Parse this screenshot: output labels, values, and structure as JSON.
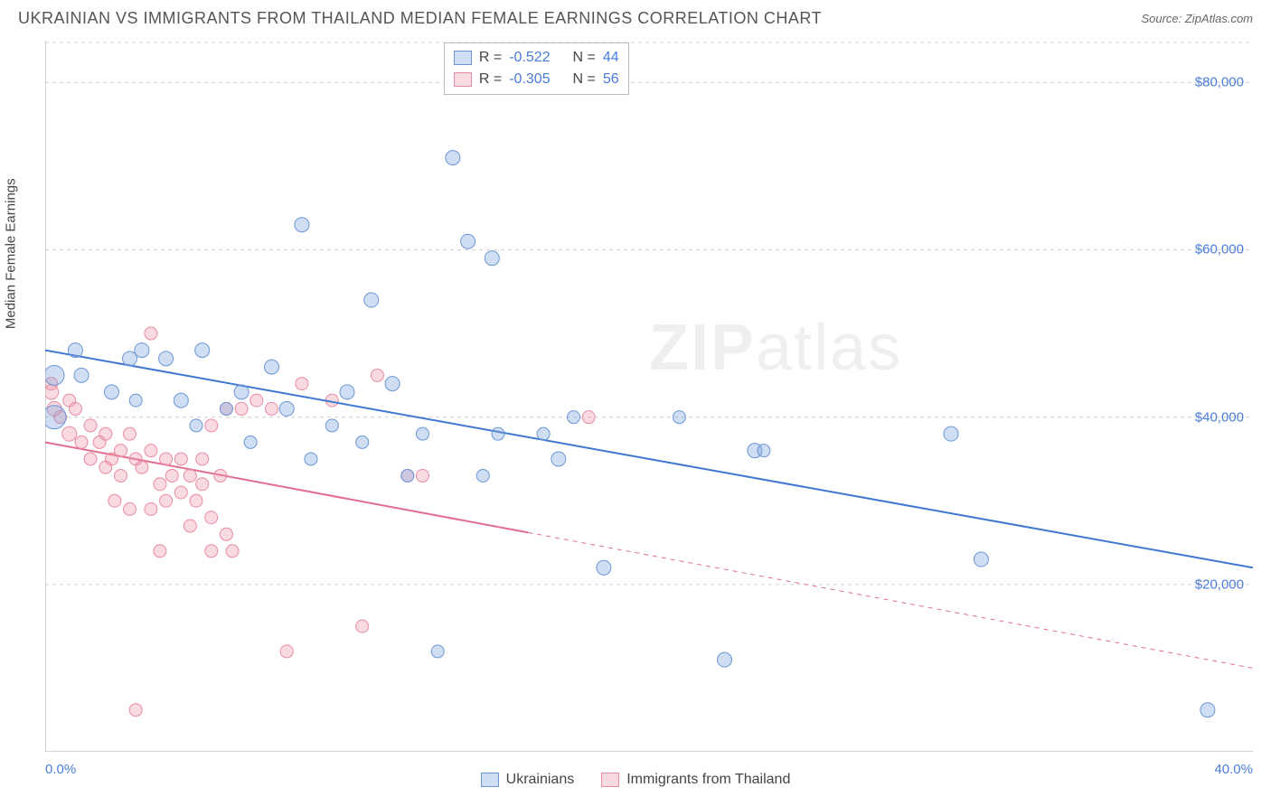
{
  "title": "UKRAINIAN VS IMMIGRANTS FROM THAILAND MEDIAN FEMALE EARNINGS CORRELATION CHART",
  "source_label": "Source: ZipAtlas.com",
  "watermark": {
    "prefix": "ZIP",
    "suffix": "atlas"
  },
  "chart": {
    "type": "scatter",
    "ylabel": "Median Female Earnings",
    "xlim": [
      0,
      40
    ],
    "ylim": [
      0,
      85000
    ],
    "y_ticks": [
      20000,
      40000,
      60000,
      80000
    ],
    "y_tick_labels": [
      "$20,000",
      "$40,000",
      "$60,000",
      "$80,000"
    ],
    "x_end_labels": [
      "0.0%",
      "40.0%"
    ],
    "x_tick_marks": [
      0,
      5,
      10,
      15,
      20,
      25,
      30,
      35
    ],
    "grid_color": "#d0d0d0",
    "axis_color": "#aaaaaa",
    "background_color": "#ffffff",
    "tick_label_color": "#4a7dd8",
    "series": [
      {
        "name": "Ukrainians",
        "fill": "rgba(120,160,220,0.35)",
        "stroke": "#6b96d6",
        "r_value": "-0.522",
        "n_value": "44",
        "trend": {
          "x1": 0,
          "y1": 48000,
          "x2": 40,
          "y2": 22000,
          "solid_to_x": 40,
          "color": "#3f77d1",
          "width": 2
        },
        "points": [
          {
            "x": 0.3,
            "y": 45000,
            "r": 11
          },
          {
            "x": 0.3,
            "y": 40000,
            "r": 13
          },
          {
            "x": 1.0,
            "y": 48000,
            "r": 8
          },
          {
            "x": 1.2,
            "y": 45000,
            "r": 8
          },
          {
            "x": 2.2,
            "y": 43000,
            "r": 8
          },
          {
            "x": 2.8,
            "y": 47000,
            "r": 8
          },
          {
            "x": 3.2,
            "y": 48000,
            "r": 8
          },
          {
            "x": 3.0,
            "y": 42000,
            "r": 7
          },
          {
            "x": 4.0,
            "y": 47000,
            "r": 8
          },
          {
            "x": 4.5,
            "y": 42000,
            "r": 8
          },
          {
            "x": 5.2,
            "y": 48000,
            "r": 8
          },
          {
            "x": 5.0,
            "y": 39000,
            "r": 7
          },
          {
            "x": 6.0,
            "y": 41000,
            "r": 7
          },
          {
            "x": 6.5,
            "y": 43000,
            "r": 8
          },
          {
            "x": 6.8,
            "y": 37000,
            "r": 7
          },
          {
            "x": 7.5,
            "y": 46000,
            "r": 8
          },
          {
            "x": 8.0,
            "y": 41000,
            "r": 8
          },
          {
            "x": 8.5,
            "y": 63000,
            "r": 8
          },
          {
            "x": 8.8,
            "y": 35000,
            "r": 7
          },
          {
            "x": 9.5,
            "y": 39000,
            "r": 7
          },
          {
            "x": 10.0,
            "y": 43000,
            "r": 8
          },
          {
            "x": 10.8,
            "y": 54000,
            "r": 8
          },
          {
            "x": 10.5,
            "y": 37000,
            "r": 7
          },
          {
            "x": 11.5,
            "y": 44000,
            "r": 8
          },
          {
            "x": 12.0,
            "y": 33000,
            "r": 7
          },
          {
            "x": 12.5,
            "y": 38000,
            "r": 7
          },
          {
            "x": 13.0,
            "y": 12000,
            "r": 7
          },
          {
            "x": 13.5,
            "y": 71000,
            "r": 8
          },
          {
            "x": 14.0,
            "y": 61000,
            "r": 8
          },
          {
            "x": 14.5,
            "y": 33000,
            "r": 7
          },
          {
            "x": 14.8,
            "y": 59000,
            "r": 8
          },
          {
            "x": 15.0,
            "y": 38000,
            "r": 7
          },
          {
            "x": 16.5,
            "y": 38000,
            "r": 7
          },
          {
            "x": 17.0,
            "y": 35000,
            "r": 8
          },
          {
            "x": 17.5,
            "y": 40000,
            "r": 7
          },
          {
            "x": 18.5,
            "y": 22000,
            "r": 8
          },
          {
            "x": 21.0,
            "y": 40000,
            "r": 7
          },
          {
            "x": 22.5,
            "y": 11000,
            "r": 8
          },
          {
            "x": 23.5,
            "y": 36000,
            "r": 8
          },
          {
            "x": 23.8,
            "y": 36000,
            "r": 7
          },
          {
            "x": 30.0,
            "y": 38000,
            "r": 8
          },
          {
            "x": 31.0,
            "y": 23000,
            "r": 8
          },
          {
            "x": 38.5,
            "y": 5000,
            "r": 8
          }
        ]
      },
      {
        "name": "Immigrants from Thailand",
        "fill": "rgba(240,150,170,0.35)",
        "stroke": "#e88ba3",
        "r_value": "-0.305",
        "n_value": "56",
        "trend": {
          "x1": 0,
          "y1": 37000,
          "x2": 40,
          "y2": 10000,
          "solid_to_x": 16,
          "color": "#e36d8f",
          "width": 2
        },
        "points": [
          {
            "x": 0.2,
            "y": 43000,
            "r": 8
          },
          {
            "x": 0.3,
            "y": 41000,
            "r": 8
          },
          {
            "x": 0.2,
            "y": 44000,
            "r": 7
          },
          {
            "x": 0.5,
            "y": 40000,
            "r": 7
          },
          {
            "x": 0.8,
            "y": 38000,
            "r": 8
          },
          {
            "x": 0.8,
            "y": 42000,
            "r": 7
          },
          {
            "x": 1.0,
            "y": 41000,
            "r": 7
          },
          {
            "x": 1.2,
            "y": 37000,
            "r": 7
          },
          {
            "x": 1.5,
            "y": 39000,
            "r": 7
          },
          {
            "x": 1.5,
            "y": 35000,
            "r": 7
          },
          {
            "x": 1.8,
            "y": 37000,
            "r": 7
          },
          {
            "x": 2.0,
            "y": 38000,
            "r": 7
          },
          {
            "x": 2.0,
            "y": 34000,
            "r": 7
          },
          {
            "x": 2.2,
            "y": 35000,
            "r": 7
          },
          {
            "x": 2.3,
            "y": 30000,
            "r": 7
          },
          {
            "x": 2.5,
            "y": 36000,
            "r": 7
          },
          {
            "x": 2.5,
            "y": 33000,
            "r": 7
          },
          {
            "x": 2.8,
            "y": 38000,
            "r": 7
          },
          {
            "x": 2.8,
            "y": 29000,
            "r": 7
          },
          {
            "x": 3.0,
            "y": 35000,
            "r": 7
          },
          {
            "x": 3.0,
            "y": 5000,
            "r": 7
          },
          {
            "x": 3.2,
            "y": 34000,
            "r": 7
          },
          {
            "x": 3.5,
            "y": 36000,
            "r": 7
          },
          {
            "x": 3.5,
            "y": 29000,
            "r": 7
          },
          {
            "x": 3.5,
            "y": 50000,
            "r": 7
          },
          {
            "x": 3.8,
            "y": 32000,
            "r": 7
          },
          {
            "x": 3.8,
            "y": 24000,
            "r": 7
          },
          {
            "x": 4.0,
            "y": 35000,
            "r": 7
          },
          {
            "x": 4.0,
            "y": 30000,
            "r": 7
          },
          {
            "x": 4.2,
            "y": 33000,
            "r": 7
          },
          {
            "x": 4.5,
            "y": 35000,
            "r": 7
          },
          {
            "x": 4.5,
            "y": 31000,
            "r": 7
          },
          {
            "x": 4.8,
            "y": 33000,
            "r": 7
          },
          {
            "x": 4.8,
            "y": 27000,
            "r": 7
          },
          {
            "x": 5.0,
            "y": 30000,
            "r": 7
          },
          {
            "x": 5.2,
            "y": 35000,
            "r": 7
          },
          {
            "x": 5.2,
            "y": 32000,
            "r": 7
          },
          {
            "x": 5.5,
            "y": 39000,
            "r": 7
          },
          {
            "x": 5.5,
            "y": 28000,
            "r": 7
          },
          {
            "x": 5.5,
            "y": 24000,
            "r": 7
          },
          {
            "x": 5.8,
            "y": 33000,
            "r": 7
          },
          {
            "x": 6.0,
            "y": 41000,
            "r": 7
          },
          {
            "x": 6.0,
            "y": 26000,
            "r": 7
          },
          {
            "x": 6.2,
            "y": 24000,
            "r": 7
          },
          {
            "x": 6.5,
            "y": 41000,
            "r": 7
          },
          {
            "x": 7.0,
            "y": 42000,
            "r": 7
          },
          {
            "x": 7.5,
            "y": 41000,
            "r": 7
          },
          {
            "x": 8.0,
            "y": 12000,
            "r": 7
          },
          {
            "x": 8.5,
            "y": 44000,
            "r": 7
          },
          {
            "x": 9.5,
            "y": 42000,
            "r": 7
          },
          {
            "x": 10.5,
            "y": 15000,
            "r": 7
          },
          {
            "x": 11.0,
            "y": 45000,
            "r": 7
          },
          {
            "x": 12.0,
            "y": 33000,
            "r": 7
          },
          {
            "x": 12.5,
            "y": 33000,
            "r": 7
          },
          {
            "x": 18.0,
            "y": 40000,
            "r": 7
          }
        ]
      }
    ]
  },
  "legend_stats": {
    "rows": [
      {
        "series_idx": 0,
        "r_label": "R =",
        "n_label": "N ="
      },
      {
        "series_idx": 1,
        "r_label": "R =",
        "n_label": "N ="
      }
    ]
  }
}
